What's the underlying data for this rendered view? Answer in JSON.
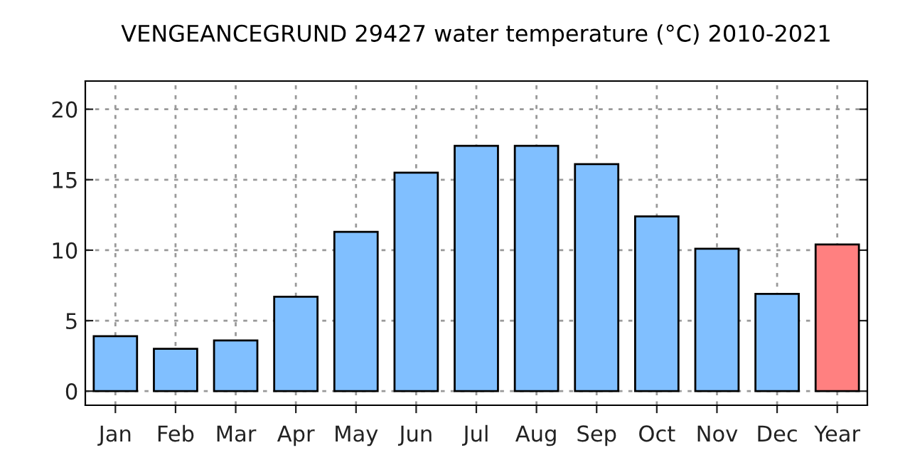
{
  "chart_data": {
    "type": "bar",
    "title": "VENGEANCEGRUND 29427 water temperature (°C) 2010-2021",
    "categories": [
      "Jan",
      "Feb",
      "Mar",
      "Apr",
      "May",
      "Jun",
      "Jul",
      "Aug",
      "Sep",
      "Oct",
      "Nov",
      "Dec",
      "Year"
    ],
    "values": [
      3.9,
      3.0,
      3.6,
      6.7,
      11.3,
      15.5,
      17.4,
      17.4,
      16.1,
      12.4,
      10.1,
      6.9,
      10.4
    ],
    "colors": [
      "#80bfff",
      "#80bfff",
      "#80bfff",
      "#80bfff",
      "#80bfff",
      "#80bfff",
      "#80bfff",
      "#80bfff",
      "#80bfff",
      "#80bfff",
      "#80bfff",
      "#80bfff",
      "#ff8080"
    ],
    "ylim": [
      -1,
      22
    ],
    "yticks": [
      0,
      5,
      10,
      15,
      20
    ],
    "grid": true
  }
}
